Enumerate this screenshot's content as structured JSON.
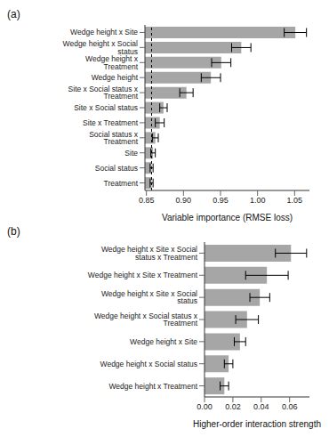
{
  "chart_data": [
    {
      "type": "bar",
      "orientation": "horizontal",
      "title": "(a)",
      "xlabel": "Variable importance (RMSE loss)",
      "categories": [
        "Wedge height x Site",
        "Wedge height x Social status",
        "Wedge height x Treatment",
        "Wedge height",
        "Site x Social status x Treatment",
        "Site x Social status",
        "Site x Treatment",
        "Social status x Treatment",
        "Site",
        "Social status",
        "Treatment"
      ],
      "values": [
        1.051,
        0.978,
        0.951,
        0.937,
        0.904,
        0.873,
        0.868,
        0.862,
        0.859,
        0.857,
        0.857
      ],
      "errors": [
        0.015,
        0.013,
        0.013,
        0.013,
        0.009,
        0.005,
        0.006,
        0.004,
        0.003,
        0.002,
        0.002
      ],
      "color": "#a6a6a6",
      "reference_line": 0.857,
      "grid": false,
      "xlim": [
        0.848,
        1.07
      ],
      "xticks": [
        0.85,
        {
          "value": 0.9,
          "label": "0.90"
        },
        0.95,
        {
          "value": 1.0,
          "label": "1.00"
        },
        1.05
      ]
    },
    {
      "type": "bar",
      "orientation": "horizontal",
      "title": "(b)",
      "xlabel": "Higher-order interaction strength",
      "categories": [
        "Wedge height x Site x Social status x Treatment",
        "Wedge height x Site x Treatment",
        "Wedge height x Site x Social status",
        "Wedge height x Social status x Treatment",
        "Wedge height x Site",
        "Wedge height x Social status",
        "Wedge height x Treatment"
      ],
      "values": [
        0.061,
        0.044,
        0.039,
        0.03,
        0.025,
        0.017,
        0.014
      ],
      "errors": [
        0.011,
        0.015,
        0.007,
        0.008,
        0.004,
        0.003,
        0.003
      ],
      "color": "#a6a6a6",
      "grid": false,
      "xlim": [
        0,
        0.074
      ],
      "xticks": [
        {
          "value": 0,
          "label": "0.00"
        },
        0.02,
        0.04,
        0.06
      ]
    }
  ]
}
